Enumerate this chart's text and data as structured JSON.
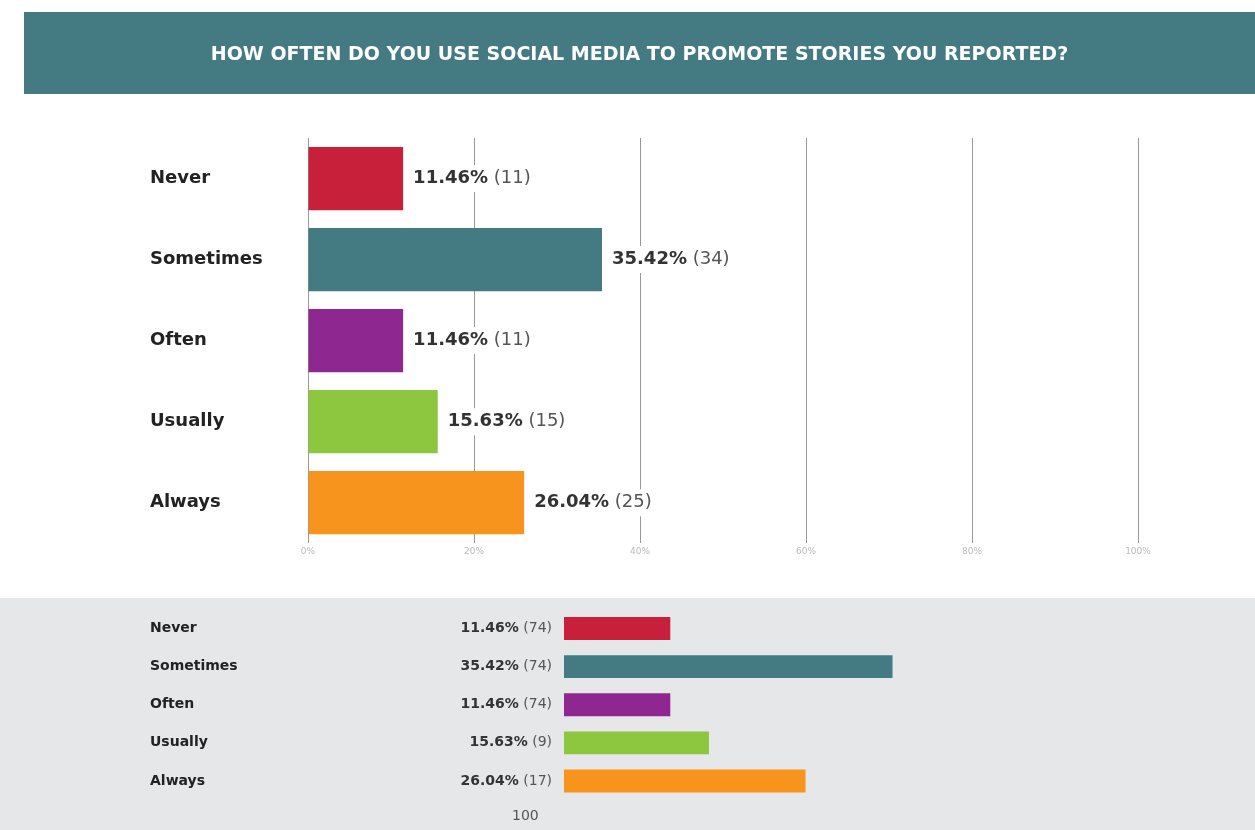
{
  "chart_data": [
    {
      "type": "bar",
      "orientation": "horizontal",
      "title": "HOW OFTEN DO YOU USE SOCIAL MEDIA TO PROMOTE STORIES YOU REPORTED?",
      "categories": [
        "Never",
        "Sometimes",
        "Often",
        "Usually",
        "Always"
      ],
      "values": [
        11.46,
        35.42,
        11.46,
        15.63,
        26.04
      ],
      "colors": [
        "#c8203a",
        "#447a82",
        "#8e278f",
        "#8dc63f",
        "#f7941d"
      ],
      "value_labels": [
        "11.46% (11)",
        "35.42% (34)",
        "11.46% (11)",
        "15.63% (15)",
        "26.04% (25)"
      ],
      "xlim": [
        0,
        100
      ],
      "xticks": [
        {
          "value": 0,
          "label": "0%"
        },
        {
          "value": 20,
          "label": "20%"
        },
        {
          "value": 40,
          "label": "40%"
        },
        {
          "value": 60,
          "label": "60%"
        },
        {
          "value": 80,
          "label": "80%"
        },
        {
          "value": 100,
          "label": "100%"
        }
      ],
      "grid": "x"
    },
    {
      "type": "bar",
      "orientation": "horizontal",
      "categories": [
        "Never",
        "Sometimes",
        "Often",
        "Usually",
        "Always"
      ],
      "values": [
        11.46,
        35.42,
        11.46,
        15.63,
        26.04
      ],
      "colors": [
        "#c8203a",
        "#447a82",
        "#8e278f",
        "#8dc63f",
        "#f7941d"
      ],
      "value_labels": [
        "11.46% (74)",
        "35.42% (74)",
        "11.46% (74)",
        "15.63% (9)",
        "26.04% (17)"
      ],
      "tick_labels": "y",
      "annotations": [
        "100"
      ]
    }
  ]
}
